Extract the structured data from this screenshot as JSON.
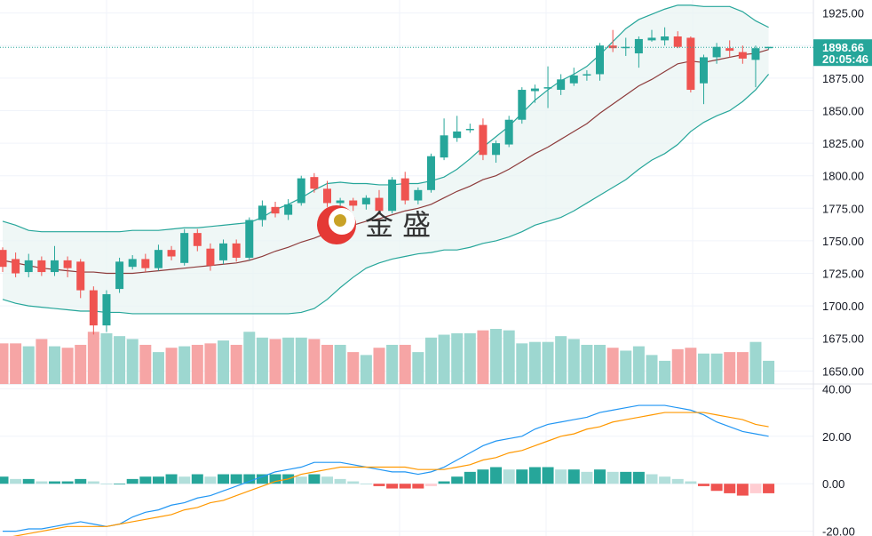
{
  "chart_data": [
    {
      "type": "candlestick",
      "panel": "price",
      "ylim": [
        1640,
        1935
      ],
      "y_ticks": [
        "1925.00",
        "1900.00",
        "1875.00",
        "1850.00",
        "1825.00",
        "1800.00",
        "1775.00",
        "1750.00",
        "1725.00",
        "1700.00",
        "1675.00",
        "1650.00"
      ],
      "y_tick_values": [
        1925,
        1900,
        1875,
        1850,
        1825,
        1800,
        1775,
        1750,
        1725,
        1700,
        1675,
        1650
      ],
      "last_price": "1898.66",
      "last_price_value": 1898.66,
      "countdown": "20:05:46",
      "colors": {
        "up": "#26a69a",
        "down": "#ef5350",
        "band_line": "#26a69a",
        "band_fill": "#e8f4f2",
        "mid_line": "#8d3b3b"
      },
      "candles": [
        [
          1743,
          1730,
          1745,
          1726
        ],
        [
          1736,
          1725,
          1741,
          1722
        ],
        [
          1726,
          1735,
          1740,
          1722
        ],
        [
          1735,
          1726,
          1738,
          1723
        ],
        [
          1726,
          1735,
          1746,
          1723
        ],
        [
          1735,
          1729,
          1738,
          1722
        ],
        [
          1734,
          1712,
          1736,
          1706
        ],
        [
          1712,
          1685,
          1715,
          1678
        ],
        [
          1685,
          1709,
          1712,
          1680
        ],
        [
          1713,
          1734,
          1737,
          1710
        ],
        [
          1730,
          1736,
          1739,
          1728
        ],
        [
          1736,
          1729,
          1740,
          1726
        ],
        [
          1729,
          1743,
          1747,
          1727
        ],
        [
          1743,
          1738,
          1746,
          1735
        ],
        [
          1733,
          1756,
          1759,
          1731
        ],
        [
          1756,
          1746,
          1759,
          1742
        ],
        [
          1744,
          1731,
          1748,
          1727
        ],
        [
          1735,
          1748,
          1751,
          1732
        ],
        [
          1748,
          1737,
          1751,
          1734
        ],
        [
          1737,
          1766,
          1768,
          1735
        ],
        [
          1766,
          1777,
          1781,
          1761
        ],
        [
          1776,
          1771,
          1780,
          1768
        ],
        [
          1770,
          1778,
          1782,
          1766
        ],
        [
          1779,
          1798,
          1800,
          1777
        ],
        [
          1799,
          1790,
          1802,
          1787
        ],
        [
          1790,
          1779,
          1796,
          1776
        ],
        [
          1779,
          1781,
          1783,
          1775
        ],
        [
          1781,
          1777,
          1783,
          1773
        ],
        [
          1778,
          1783,
          1785,
          1774
        ],
        [
          1783,
          1773,
          1789,
          1770
        ],
        [
          1773,
          1797,
          1799,
          1771
        ],
        [
          1798,
          1781,
          1803,
          1778
        ],
        [
          1781,
          1789,
          1791,
          1778
        ],
        [
          1789,
          1815,
          1817,
          1787
        ],
        [
          1814,
          1831,
          1844,
          1812
        ],
        [
          1829,
          1834,
          1846,
          1826
        ],
        [
          1835,
          1836,
          1840,
          1833
        ],
        [
          1839,
          1816,
          1844,
          1812
        ],
        [
          1816,
          1825,
          1827,
          1810
        ],
        [
          1824,
          1843,
          1846,
          1822
        ],
        [
          1843,
          1866,
          1868,
          1840
        ],
        [
          1865,
          1867,
          1870,
          1856
        ],
        [
          1867,
          1868,
          1884,
          1852
        ],
        [
          1866,
          1874,
          1878,
          1862
        ],
        [
          1871,
          1877,
          1883,
          1869
        ],
        [
          1878,
          1878,
          1881,
          1873
        ],
        [
          1878,
          1900,
          1902,
          1873
        ],
        [
          1900,
          1898,
          1912,
          1895
        ],
        [
          1898,
          1899,
          1906,
          1892
        ],
        [
          1894,
          1905,
          1907,
          1883
        ],
        [
          1904,
          1906,
          1912,
          1903
        ],
        [
          1904,
          1907,
          1914,
          1900
        ],
        [
          1907,
          1899,
          1911,
          1898
        ],
        [
          1906,
          1866,
          1907,
          1864
        ],
        [
          1871,
          1891,
          1893,
          1855
        ],
        [
          1891,
          1899,
          1902,
          1886
        ],
        [
          1898,
          1896,
          1904,
          1891
        ],
        [
          1895,
          1890,
          1900,
          1886
        ],
        [
          1889,
          1898,
          1900,
          1868
        ],
        [
          1898,
          1899,
          1899,
          1897
        ]
      ],
      "bollinger": {
        "upper": [
          1765,
          1762,
          1758,
          1757,
          1757,
          1757,
          1757,
          1757,
          1757,
          1757,
          1758,
          1758,
          1758,
          1759,
          1760,
          1760,
          1761,
          1762,
          1763,
          1764,
          1768,
          1774,
          1778,
          1783,
          1789,
          1794,
          1795,
          1794,
          1794,
          1793,
          1793,
          1794,
          1794,
          1796,
          1799,
          1805,
          1813,
          1822,
          1830,
          1838,
          1848,
          1858,
          1866,
          1873,
          1878,
          1884,
          1893,
          1903,
          1913,
          1920,
          1924,
          1928,
          1931,
          1931,
          1930,
          1930,
          1930,
          1926,
          1919,
          1914
        ],
        "mid": [
          1735,
          1733,
          1731,
          1729,
          1728,
          1727,
          1726,
          1726,
          1725,
          1725,
          1725,
          1726,
          1727,
          1728,
          1729,
          1730,
          1731,
          1732,
          1733,
          1735,
          1738,
          1742,
          1745,
          1749,
          1752,
          1756,
          1759,
          1762,
          1765,
          1767,
          1770,
          1773,
          1775,
          1778,
          1783,
          1788,
          1792,
          1797,
          1800,
          1805,
          1811,
          1817,
          1822,
          1828,
          1834,
          1840,
          1848,
          1855,
          1862,
          1869,
          1874,
          1880,
          1886,
          1888,
          1887,
          1889,
          1891,
          1893,
          1894,
          1897
        ],
        "lower": [
          1705,
          1702,
          1700,
          1699,
          1698,
          1697,
          1696,
          1696,
          1695,
          1695,
          1694,
          1694,
          1694,
          1694,
          1694,
          1694,
          1694,
          1694,
          1694,
          1694,
          1694,
          1694,
          1694,
          1695,
          1698,
          1705,
          1714,
          1722,
          1729,
          1733,
          1736,
          1738,
          1740,
          1741,
          1743,
          1743,
          1745,
          1748,
          1750,
          1753,
          1757,
          1762,
          1765,
          1768,
          1773,
          1779,
          1785,
          1791,
          1797,
          1805,
          1812,
          1817,
          1824,
          1834,
          1841,
          1846,
          1850,
          1857,
          1866,
          1878
        ]
      }
    },
    {
      "type": "bar",
      "panel": "volume",
      "values": [
        28,
        28,
        26,
        31,
        26,
        25,
        27,
        36,
        35,
        33,
        31,
        27,
        22,
        25,
        26,
        27,
        28,
        30,
        27,
        36,
        32,
        31,
        32,
        32,
        31,
        27,
        27,
        22,
        20,
        25,
        27,
        27,
        22,
        32,
        34,
        35,
        35,
        37,
        38,
        37,
        28,
        29,
        29,
        33,
        31,
        27,
        27,
        25,
        23,
        26,
        20,
        16,
        24,
        25,
        21,
        21,
        22,
        22,
        29,
        16
      ],
      "up_color": "#9dd7d0",
      "down_color": "#f6a5a5"
    },
    {
      "type": "macd",
      "panel": "macd",
      "ylim": [
        -22,
        42
      ],
      "y_ticks": [
        "40.00",
        "20.00",
        "0.00",
        "-20.00"
      ],
      "y_tick_values": [
        40,
        20,
        0,
        -20
      ],
      "colors": {
        "macd": "#2196f3",
        "signal": "#ff9800",
        "hist_up_strong": "#26a69a",
        "hist_up_weak": "#b2dfdb",
        "hist_down_strong": "#ef5350",
        "hist_down_weak": "#ffcdd2"
      },
      "macd": [
        -20,
        -20,
        -19,
        -19,
        -18,
        -17,
        -16,
        -17,
        -18,
        -17,
        -14,
        -12,
        -11,
        -9,
        -8,
        -6,
        -5,
        -3,
        -1,
        1,
        3,
        5,
        6,
        7,
        9,
        9,
        9,
        8,
        7,
        6,
        5,
        5,
        4,
        5,
        7,
        10,
        13,
        16,
        18,
        19,
        20,
        23,
        25,
        26,
        27,
        28,
        30,
        31,
        32,
        33,
        33,
        33,
        32,
        31,
        29,
        26,
        24,
        22,
        21,
        20
      ],
      "signal": [
        -23,
        -22,
        -21,
        -20,
        -19,
        -18,
        -18,
        -18,
        -18,
        -17,
        -16,
        -15,
        -14,
        -13,
        -11,
        -10,
        -8,
        -7,
        -5,
        -3,
        -1,
        1,
        2,
        4,
        5,
        6,
        7,
        7,
        7,
        7,
        7,
        7,
        6,
        6,
        6,
        7,
        8,
        10,
        11,
        13,
        14,
        16,
        18,
        20,
        21,
        23,
        24,
        26,
        27,
        28,
        29,
        30,
        30,
        30,
        30,
        29,
        28,
        27,
        25,
        24
      ]
    }
  ],
  "watermark": {
    "text": "金 盛"
  }
}
